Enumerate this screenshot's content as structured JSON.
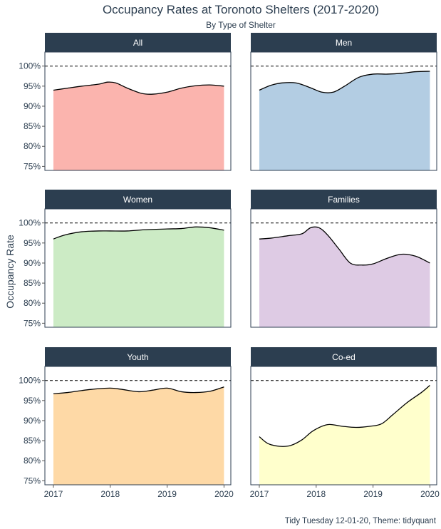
{
  "chart_data": {
    "type": "area",
    "title": "Occupancy Rates at Toronoto Shelters (2017-2020)",
    "subtitle": "By Type of Shelter",
    "ylabel": "Occupancy Rate",
    "caption": "Tidy Tuesday 12-01-20, Theme: tidyquant",
    "x_ticks": [
      "2017",
      "2018",
      "2019",
      "2020"
    ],
    "y_ticks": [
      "75%",
      "80%",
      "85%",
      "90%",
      "95%",
      "100%"
    ],
    "ylim": [
      74,
      103.5
    ],
    "xlim": [
      2016.85,
      2020.12
    ],
    "reference_line": 100,
    "strip_color": "#2c3e50",
    "grid": false,
    "panels": [
      {
        "name": "All",
        "color": "#fbb4ae",
        "x": [
          2017.0,
          2017.25,
          2017.5,
          2017.8,
          2017.95,
          2018.1,
          2018.3,
          2018.55,
          2018.75,
          2019.0,
          2019.25,
          2019.5,
          2019.75,
          2020.0
        ],
        "y": [
          94.0,
          94.5,
          95.0,
          95.5,
          96.0,
          95.8,
          94.5,
          93.2,
          93.0,
          93.5,
          94.5,
          95.1,
          95.3,
          95.0
        ]
      },
      {
        "name": "Men",
        "color": "#b3cde3",
        "x": [
          2017.0,
          2017.2,
          2017.4,
          2017.65,
          2017.9,
          2018.1,
          2018.3,
          2018.5,
          2018.75,
          2019.0,
          2019.25,
          2019.5,
          2019.75,
          2020.0
        ],
        "y": [
          94.0,
          95.2,
          95.8,
          95.8,
          94.6,
          93.5,
          93.5,
          95.0,
          97.2,
          98.0,
          98.0,
          98.2,
          98.6,
          98.7
        ]
      },
      {
        "name": "Women",
        "color": "#ccebc5",
        "x": [
          2017.0,
          2017.2,
          2017.5,
          2017.8,
          2018.0,
          2018.3,
          2018.6,
          2019.0,
          2019.25,
          2019.5,
          2019.75,
          2020.0
        ],
        "y": [
          96.0,
          97.0,
          97.8,
          98.0,
          98.0,
          98.0,
          98.3,
          98.5,
          98.6,
          99.0,
          98.8,
          98.2
        ]
      },
      {
        "name": "Families",
        "color": "#decbe4",
        "x": [
          2017.0,
          2017.2,
          2017.5,
          2017.75,
          2017.9,
          2018.05,
          2018.2,
          2018.4,
          2018.6,
          2018.8,
          2019.0,
          2019.25,
          2019.5,
          2019.75,
          2020.0
        ],
        "y": [
          96.0,
          96.2,
          96.8,
          97.3,
          98.8,
          98.8,
          97.0,
          93.5,
          90.0,
          89.5,
          89.8,
          91.2,
          92.2,
          91.7,
          90.0
        ]
      },
      {
        "name": "Youth",
        "color": "#fed9a6",
        "x": [
          2017.0,
          2017.25,
          2017.5,
          2017.75,
          2018.0,
          2018.2,
          2018.5,
          2018.75,
          2019.0,
          2019.25,
          2019.5,
          2019.75,
          2020.0
        ],
        "y": [
          96.7,
          97.0,
          97.5,
          97.9,
          98.1,
          97.8,
          97.2,
          97.6,
          98.1,
          97.2,
          97.0,
          97.3,
          98.4
        ]
      },
      {
        "name": "Co-ed",
        "color": "#ffffcc",
        "x": [
          2017.0,
          2017.15,
          2017.35,
          2017.55,
          2017.75,
          2017.95,
          2018.2,
          2018.45,
          2018.7,
          2018.95,
          2019.15,
          2019.35,
          2019.6,
          2019.85,
          2020.0
        ],
        "y": [
          86.0,
          84.3,
          83.6,
          83.8,
          85.2,
          87.5,
          89.0,
          88.6,
          88.3,
          88.6,
          89.2,
          91.5,
          94.5,
          97.0,
          98.8
        ]
      }
    ]
  }
}
